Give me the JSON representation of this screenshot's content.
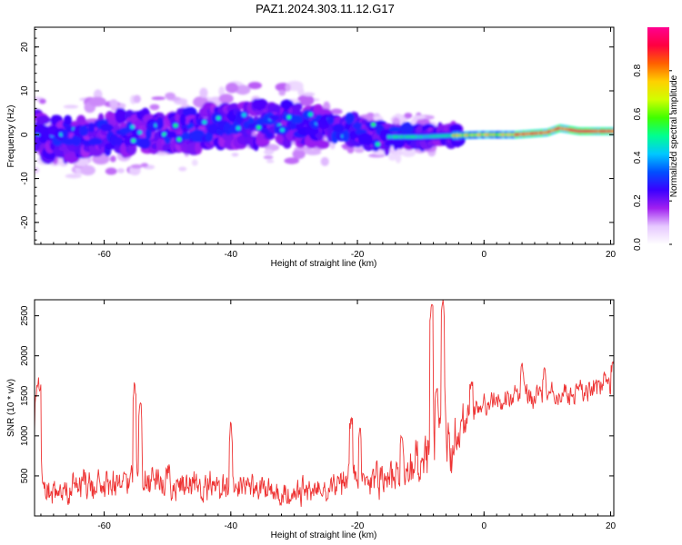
{
  "title": "PAZ1.2024.303.11.12.G17",
  "chart_data": [
    {
      "type": "heatmap",
      "title": "PAZ1.2024.303.11.12.G17",
      "xlabel": "Height of straight line (km)",
      "ylabel": "Frequency (Hz)",
      "xlim": [
        -71,
        20.5
      ],
      "ylim": [
        -25,
        24.5
      ],
      "x_ticks": [
        -60,
        -40,
        -20,
        0,
        20
      ],
      "y_ticks": [
        -20,
        -10,
        0,
        10,
        20
      ],
      "colorbar": {
        "label": "Normalized spectral amplitude",
        "range": [
          0,
          1
        ],
        "ticks": [
          0.0,
          0.2,
          0.4,
          0.6,
          0.8
        ],
        "colormap": [
          "#ffffff",
          "#e6c8ff",
          "#a020f0",
          "#3a00ff",
          "#0050ff",
          "#00c8ff",
          "#00ff90",
          "#40ff00",
          "#d0ff00",
          "#ffd000",
          "#ff6000",
          "#ff0040",
          "#ff0090"
        ]
      },
      "ridge_center_hz": [
        {
          "x": -70,
          "y": -0.5
        },
        {
          "x": -65,
          "y": -1.0
        },
        {
          "x": -60,
          "y": 0.5
        },
        {
          "x": -55,
          "y": 0.0
        },
        {
          "x": -50,
          "y": 0.5
        },
        {
          "x": -45,
          "y": 1.5
        },
        {
          "x": -40,
          "y": 2.0
        },
        {
          "x": -35,
          "y": 2.5
        },
        {
          "x": -30,
          "y": 2.5
        },
        {
          "x": -25,
          "y": 2.0
        },
        {
          "x": -20,
          "y": 1.0
        },
        {
          "x": -15,
          "y": -0.5
        },
        {
          "x": -10,
          "y": -0.5
        },
        {
          "x": -5,
          "y": -0.2
        },
        {
          "x": 0,
          "y": 0.0
        },
        {
          "x": 5,
          "y": 0.0
        },
        {
          "x": 10,
          "y": 0.5
        },
        {
          "x": 12,
          "y": 1.5
        },
        {
          "x": 15,
          "y": 0.8
        },
        {
          "x": 20.5,
          "y": 0.8
        }
      ],
      "grid": false
    },
    {
      "type": "line",
      "xlabel": "Height of straight line (km)",
      "ylabel": "SNR (10 * v/v)",
      "xlim": [
        -71,
        20.5
      ],
      "ylim": [
        0,
        2700
      ],
      "x_ticks": [
        -60,
        -40,
        -20,
        0,
        20
      ],
      "y_ticks": [
        500,
        1000,
        1500,
        2000,
        2500
      ],
      "color": "#ee3333",
      "grid": false,
      "envelope": [
        {
          "x": -70,
          "mean": 300,
          "amp": 250
        },
        {
          "x": -65,
          "mean": 380,
          "amp": 300
        },
        {
          "x": -60,
          "mean": 380,
          "amp": 280
        },
        {
          "x": -55,
          "mean": 420,
          "amp": 320
        },
        {
          "x": -50,
          "mean": 400,
          "amp": 300
        },
        {
          "x": -45,
          "mean": 380,
          "amp": 280
        },
        {
          "x": -40,
          "mean": 350,
          "amp": 260
        },
        {
          "x": -35,
          "mean": 320,
          "amp": 250
        },
        {
          "x": -30,
          "mean": 280,
          "amp": 220
        },
        {
          "x": -25,
          "mean": 350,
          "amp": 260
        },
        {
          "x": -20,
          "mean": 450,
          "amp": 320
        },
        {
          "x": -15,
          "mean": 500,
          "amp": 350
        },
        {
          "x": -10,
          "mean": 650,
          "amp": 500
        },
        {
          "x": -5,
          "mean": 900,
          "amp": 500
        },
        {
          "x": -2,
          "mean": 1300,
          "amp": 250
        },
        {
          "x": 0,
          "mean": 1400,
          "amp": 200
        },
        {
          "x": 5,
          "mean": 1500,
          "amp": 200
        },
        {
          "x": 10,
          "mean": 1500,
          "amp": 200
        },
        {
          "x": 15,
          "mean": 1550,
          "amp": 200
        },
        {
          "x": 20.5,
          "mean": 1650,
          "amp": 200
        }
      ],
      "peaks": [
        {
          "x": -55.2,
          "y": 1680
        },
        {
          "x": -54.3,
          "y": 1450
        },
        {
          "x": -40.0,
          "y": 1180
        },
        {
          "x": -21.0,
          "y": 1250
        },
        {
          "x": -19.6,
          "y": 1100
        },
        {
          "x": -13.0,
          "y": 1000
        },
        {
          "x": -8.3,
          "y": 2640
        },
        {
          "x": -6.5,
          "y": 2700
        },
        {
          "x": -7.5,
          "y": 1600
        },
        {
          "x": -2.0,
          "y": 1700
        },
        {
          "x": 6.0,
          "y": 1950
        },
        {
          "x": 9.5,
          "y": 1850
        },
        {
          "x": 19.0,
          "y": 1800
        },
        {
          "x": 20.3,
          "y": 1950
        }
      ]
    }
  ]
}
